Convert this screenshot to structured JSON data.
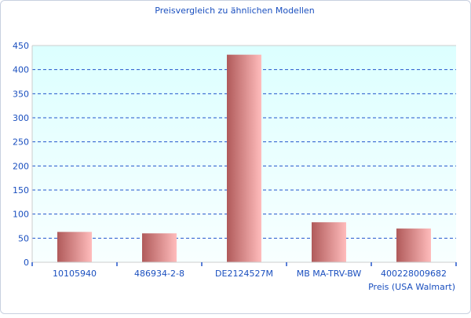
{
  "chart_data": {
    "type": "bar",
    "title": "Preisvergleich zu ähnlichen Modellen",
    "xlabel": "Preis (USA Walmart)",
    "ylabel": "",
    "categories": [
      "10105940",
      "486934-2-8",
      "DE2124527M",
      "MB MA-TRV-BW",
      "400228009682"
    ],
    "values": [
      63,
      60,
      431,
      83,
      70
    ],
    "ylim": [
      0,
      450
    ],
    "yticks": [
      0,
      50,
      100,
      150,
      200,
      250,
      300,
      350,
      400,
      450
    ],
    "grid": true,
    "colors": {
      "bar_dark": "#b05a5a",
      "bar_light": "#ffbcbc",
      "grid": "#2255cc",
      "text": "#1a4fbf",
      "plot_bg_top": "#dcffff",
      "plot_bg_bottom": "#f8ffff"
    }
  }
}
